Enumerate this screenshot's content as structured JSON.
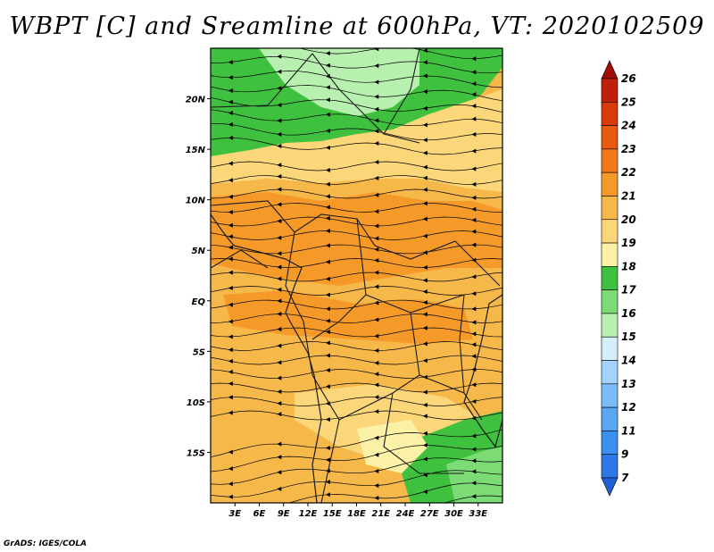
{
  "title": "WBPT [C] and Sreamline at 600hPa, VT: 2020102509",
  "credit": "GrADS: IGES/COLA",
  "map": {
    "lon_range": [
      0,
      36
    ],
    "lat_range": [
      -20,
      25
    ],
    "lat_ticks": [
      {
        "value": 20,
        "label": "20N"
      },
      {
        "value": 15,
        "label": "15N"
      },
      {
        "value": 10,
        "label": "10N"
      },
      {
        "value": 5,
        "label": "5N"
      },
      {
        "value": 0,
        "label": "EQ"
      },
      {
        "value": -5,
        "label": "5S"
      },
      {
        "value": -10,
        "label": "10S"
      },
      {
        "value": -15,
        "label": "15S"
      }
    ],
    "lon_ticks": [
      {
        "value": 3,
        "label": "3E"
      },
      {
        "value": 6,
        "label": "6E"
      },
      {
        "value": 9,
        "label": "9E"
      },
      {
        "value": 12,
        "label": "12E"
      },
      {
        "value": 15,
        "label": "15E"
      },
      {
        "value": 18,
        "label": "18E"
      },
      {
        "value": 21,
        "label": "21E"
      },
      {
        "value": 24,
        "label": "24E"
      },
      {
        "value": 27,
        "label": "27E"
      },
      {
        "value": 30,
        "label": "30E"
      },
      {
        "value": 33,
        "label": "33E"
      }
    ]
  },
  "colorbar": {
    "levels": [
      "7",
      "9",
      "11",
      "12",
      "13",
      "14",
      "15",
      "16",
      "17",
      "18",
      "19",
      "20",
      "21",
      "22",
      "23",
      "24",
      "25",
      "26"
    ],
    "colors": [
      "#1f5fd6",
      "#2d78e6",
      "#3c90f0",
      "#5aa6f5",
      "#7bbcf8",
      "#a3d3fb",
      "#d6eefc",
      "#b8f0b0",
      "#7cdb74",
      "#3fc03f",
      "#fbf2a8",
      "#fbd77a",
      "#f7b84a",
      "#f59a28",
      "#f07a1a",
      "#e85a10",
      "#d83a0a",
      "#c0200a",
      "#a00c08"
    ]
  }
}
